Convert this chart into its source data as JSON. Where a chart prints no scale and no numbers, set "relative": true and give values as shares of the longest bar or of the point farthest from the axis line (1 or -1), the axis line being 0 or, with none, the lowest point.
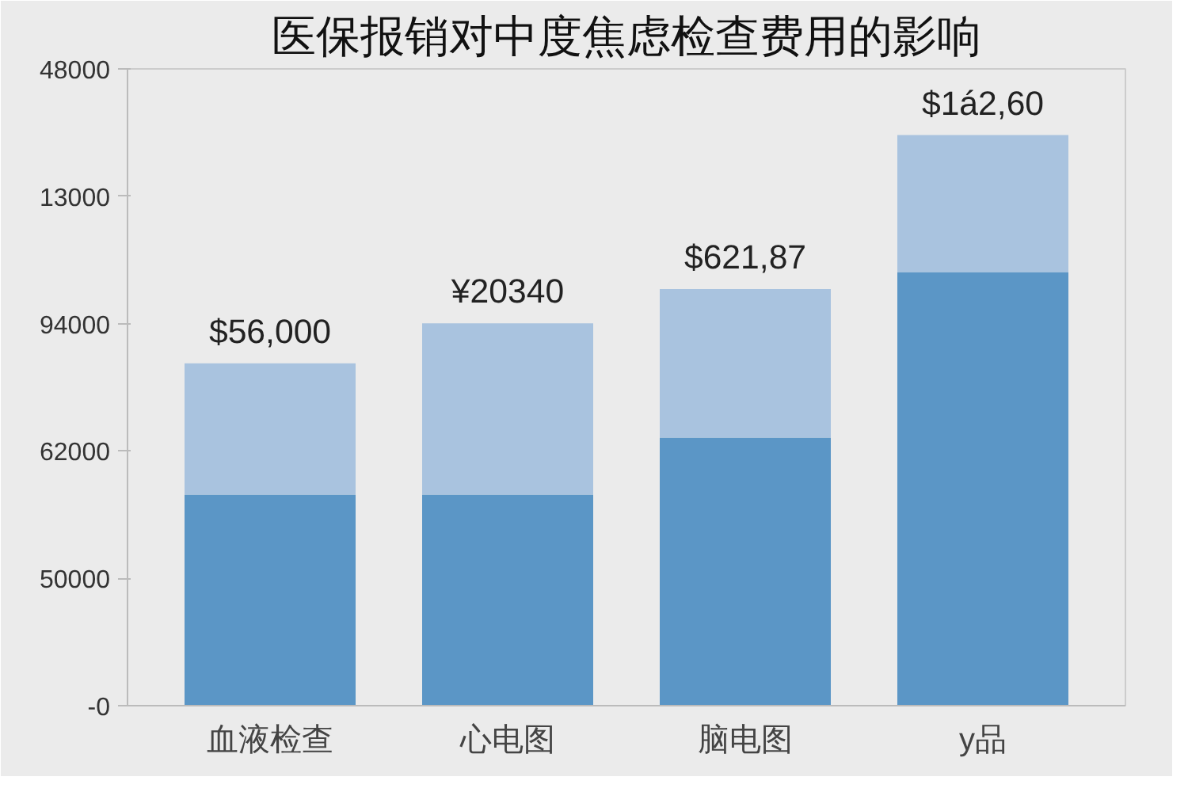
{
  "chart_data": {
    "type": "bar",
    "title": "医保报销对中度焦虑检查费用的影响",
    "categories": [
      "血液检查",
      "心电图",
      "脑电图",
      "y品"
    ],
    "stacked": true,
    "relative": true,
    "series": [
      {
        "color": "#5b96c6",
        "values": [
          0.37,
          0.37,
          0.47,
          0.76
        ]
      },
      {
        "color": "#a9c3df",
        "values": [
          0.23,
          0.3,
          0.26,
          0.24
        ]
      }
    ],
    "value_labels": [
      "$56,000",
      "¥20340",
      "$621,87",
      "$1á2,60"
    ],
    "annotations": [
      "-0",
      "50000",
      "62000",
      "94000",
      "13000",
      "48000"
    ],
    "grid": false
  }
}
